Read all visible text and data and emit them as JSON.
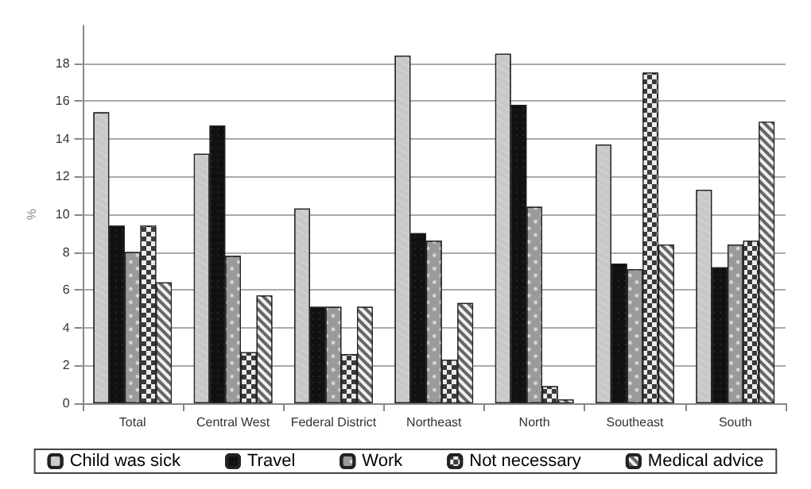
{
  "chart_data": {
    "type": "bar",
    "ylabel": "%",
    "categories": [
      "Total",
      "Central West",
      "Federal District",
      "Northeast",
      "North",
      "Southeast",
      "South"
    ],
    "series": [
      {
        "name": "Child was sick",
        "color": "#c8c8c8",
        "values": [
          15.4,
          13.2,
          10.3,
          18.4,
          18.5,
          13.7,
          11.3
        ]
      },
      {
        "name": "Travel",
        "color": "#111111",
        "values": [
          9.4,
          14.7,
          5.1,
          9.0,
          15.8,
          7.4,
          7.2
        ]
      },
      {
        "name": "Work",
        "color": "#9a9a9a",
        "values": [
          8.0,
          7.8,
          5.1,
          8.6,
          10.4,
          7.1,
          8.4
        ]
      },
      {
        "name": "Not necessary",
        "color": "#3a3a3a",
        "values": [
          9.4,
          2.7,
          2.6,
          2.3,
          0.9,
          17.5,
          8.6
        ]
      },
      {
        "name": "Medical advice",
        "color": "#666666",
        "values": [
          6.4,
          5.7,
          5.1,
          5.3,
          0.2,
          8.4,
          14.9
        ]
      }
    ],
    "ylim": [
      0,
      20
    ],
    "yticks": [
      0,
      2,
      4,
      6,
      8,
      10,
      12,
      14,
      16,
      18
    ],
    "grid": "y",
    "legend": "bottom"
  }
}
